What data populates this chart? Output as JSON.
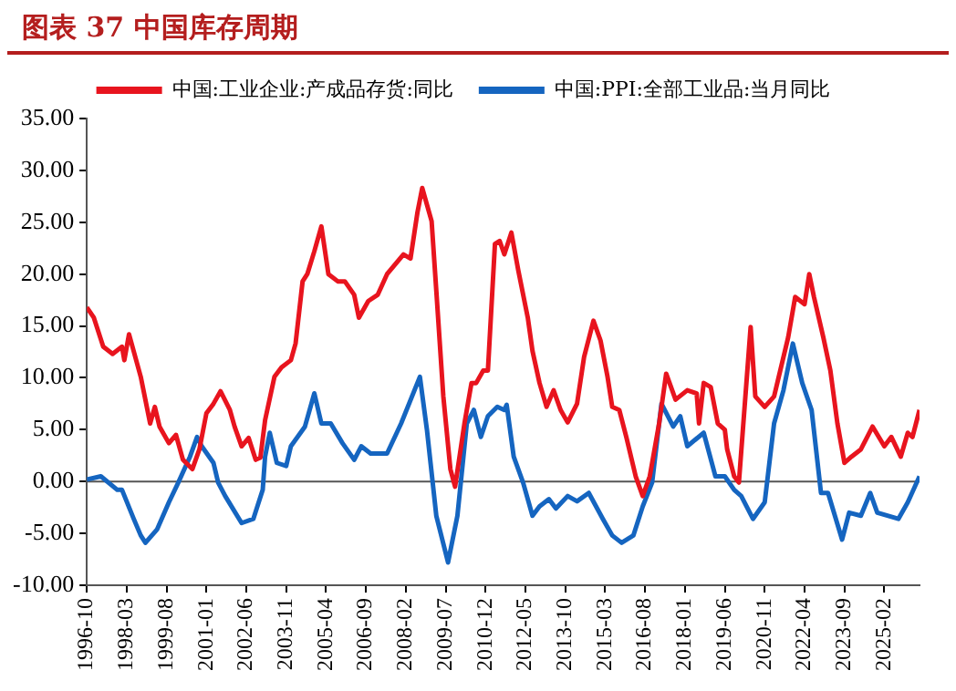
{
  "chart_data": {
    "type": "line",
    "title": "图表 37    中国库存周期",
    "xlim": [
      "1996-10",
      "2026-05"
    ],
    "xticks": [
      "1996-10",
      "1998-03",
      "1999-08",
      "2001-01",
      "2002-06",
      "2003-11",
      "2005-04",
      "2006-09",
      "2008-02",
      "2009-07",
      "2010-12",
      "2012-05",
      "2013-10",
      "2015-03",
      "2016-08",
      "2018-01",
      "2019-06",
      "2020-11",
      "2022-04",
      "2023-09",
      "2025-02"
    ],
    "ylim": [
      -10,
      35
    ],
    "yticks": [
      {
        "value": -10,
        "label": "-10.00"
      },
      {
        "value": -5,
        "label": "-5.00"
      },
      {
        "value": 0,
        "label": "0.00"
      },
      {
        "value": 5,
        "label": "5.00"
      },
      {
        "value": 10,
        "label": "10.00"
      },
      {
        "value": 15,
        "label": "15.00"
      },
      {
        "value": 20,
        "label": "20.00"
      },
      {
        "value": 25,
        "label": "25.00"
      },
      {
        "value": 30,
        "label": "30.00"
      },
      {
        "value": 35,
        "label": "35.00"
      }
    ],
    "ref_lines": [
      {
        "axis": "y",
        "value": 0,
        "color": "#555555"
      }
    ],
    "grid": false,
    "legend": "top",
    "marker": "none",
    "line_style": "solid",
    "series": [
      {
        "name": "中国:工业企业:产成品存货:同比",
        "color": "#e8141e",
        "x": [
          "1996-10",
          "1997-01",
          "1997-05",
          "1997-09",
          "1998-01",
          "1998-02",
          "1998-04",
          "1998-09",
          "1999-01",
          "1999-03",
          "1999-05",
          "1999-09",
          "1999-12",
          "2000-03",
          "2000-07",
          "2000-10",
          "2001-01",
          "2001-04",
          "2001-07",
          "2001-11",
          "2002-01",
          "2002-04",
          "2002-07",
          "2002-10",
          "2002-12",
          "2003-02",
          "2003-06",
          "2003-09",
          "2004-01",
          "2004-03",
          "2004-06",
          "2004-08",
          "2004-11",
          "2005-02",
          "2005-05",
          "2005-09",
          "2005-12",
          "2006-04",
          "2006-06",
          "2006-10",
          "2007-02",
          "2007-06",
          "2008-01",
          "2008-04",
          "2008-07",
          "2008-09",
          "2009-01",
          "2009-03",
          "2009-06",
          "2009-09",
          "2009-11",
          "2010-03",
          "2010-06",
          "2010-08",
          "2010-11",
          "2011-01",
          "2011-04",
          "2011-06",
          "2011-08",
          "2011-11",
          "2012-02",
          "2012-06",
          "2012-08",
          "2012-11",
          "2013-02",
          "2013-05",
          "2013-08",
          "2013-11",
          "2014-03",
          "2014-06",
          "2014-10",
          "2015-01",
          "2015-04",
          "2015-06",
          "2015-09",
          "2015-12",
          "2016-04",
          "2016-07",
          "2016-10",
          "2017-02",
          "2017-05",
          "2017-09",
          "2018-02",
          "2018-06",
          "2018-07",
          "2018-09",
          "2018-12",
          "2019-03",
          "2019-06",
          "2019-07",
          "2019-10",
          "2019-12",
          "2020-05",
          "2020-07",
          "2020-11",
          "2021-03",
          "2021-09",
          "2021-12",
          "2022-04",
          "2022-06",
          "2022-08",
          "2022-12",
          "2023-03",
          "2023-06",
          "2023-09",
          "2023-12",
          "2024-04",
          "2024-09",
          "2025-02",
          "2025-05",
          "2025-09",
          "2025-12",
          "2026-02",
          "2026-05"
        ],
        "values": [
          16.8,
          15.8,
          13,
          12.3,
          13,
          11.7,
          14.2,
          10.1,
          5.6,
          7.2,
          5.3,
          3.7,
          4.5,
          2.1,
          1.2,
          3.1,
          6.6,
          7.5,
          8.7,
          6.9,
          5.3,
          3.4,
          4.2,
          2.1,
          2.3,
          5.9,
          10.1,
          11,
          11.7,
          13.3,
          19.3,
          20,
          22.2,
          24.6,
          20,
          19.3,
          19.3,
          18,
          15.8,
          17.4,
          18,
          20,
          21.9,
          21.5,
          26,
          28.3,
          25.1,
          18.4,
          8.2,
          1.2,
          -0.5,
          5.6,
          9.5,
          9.5,
          10.7,
          10.7,
          22.9,
          23.2,
          21.9,
          24,
          20.3,
          15.8,
          12.6,
          9.5,
          7.2,
          8.8,
          6.9,
          5.7,
          7.5,
          12,
          15.5,
          13.6,
          10.1,
          7.2,
          6.9,
          4.3,
          0.5,
          -1.4,
          0.5,
          5.6,
          10.4,
          7.9,
          8.8,
          8.5,
          5.6,
          9.5,
          9.1,
          5.6,
          5,
          3.1,
          0.5,
          -0.1,
          14.9,
          8.2,
          7.2,
          8.2,
          13.9,
          17.8,
          17.1,
          20,
          17.8,
          13.9,
          10.7,
          5.6,
          1.8,
          2.4,
          3.1,
          5.3,
          3.4,
          4.3,
          2.4,
          4.7,
          4.3,
          6.9
        ]
      },
      {
        "name": "中国:PPI:全部工业品:当月同比",
        "color": "#1565c0",
        "x": [
          "1996-10",
          "1997-04",
          "1997-11",
          "1998-01",
          "1998-06",
          "1998-09",
          "1998-11",
          "1999-04",
          "1999-09",
          "2000-01",
          "2000-06",
          "2000-09",
          "2000-11",
          "2001-04",
          "2001-06",
          "2001-09",
          "2002-04",
          "2002-09",
          "2003-01",
          "2003-02",
          "2003-04",
          "2003-07",
          "2003-11",
          "2004-01",
          "2004-07",
          "2004-11",
          "2005-02",
          "2005-06",
          "2005-11",
          "2006-04",
          "2006-07",
          "2006-11",
          "2007-06",
          "2007-12",
          "2008-08",
          "2008-11",
          "2009-03",
          "2009-08",
          "2009-12",
          "2010-04",
          "2010-07",
          "2010-10",
          "2011-01",
          "2011-05",
          "2011-08",
          "2011-09",
          "2011-12",
          "2012-04",
          "2012-08",
          "2012-11",
          "2013-03",
          "2013-06",
          "2013-11",
          "2014-03",
          "2014-08",
          "2015-02",
          "2015-06",
          "2015-10",
          "2016-03",
          "2016-07",
          "2016-11",
          "2017-03",
          "2017-08",
          "2017-11",
          "2018-02",
          "2018-09",
          "2019-02",
          "2019-06",
          "2019-10",
          "2020-01",
          "2020-06",
          "2020-11",
          "2021-03",
          "2021-07",
          "2021-11",
          "2022-03",
          "2022-07",
          "2022-11",
          "2023-02",
          "2023-08",
          "2023-11",
          "2024-04",
          "2024-08",
          "2024-11",
          "2025-08",
          "2025-12",
          "2026-05"
        ],
        "values": [
          0.2,
          0.5,
          -0.8,
          -0.8,
          -3.6,
          -5.2,
          -5.9,
          -4.6,
          -2,
          -0.1,
          2.4,
          4.3,
          3.4,
          1.8,
          -0.1,
          -1.4,
          -4,
          -3.6,
          -0.8,
          2.4,
          4.7,
          1.8,
          1.5,
          3.4,
          5.3,
          8.5,
          5.6,
          5.6,
          3.7,
          2.1,
          3.4,
          2.7,
          2.7,
          5.6,
          10.1,
          5,
          -3.3,
          -7.8,
          -3.3,
          5.6,
          6.9,
          4.3,
          6.3,
          7.2,
          6.9,
          7.4,
          2.4,
          -0.1,
          -3.3,
          -2.4,
          -1.7,
          -2.6,
          -1.4,
          -1.9,
          -1.1,
          -3.6,
          -5.2,
          -5.9,
          -5.2,
          -2.4,
          -0.1,
          7.5,
          5.3,
          6.3,
          3.4,
          4.7,
          0.5,
          0.5,
          -0.8,
          -1.4,
          -3.6,
          -2,
          5.6,
          8.8,
          13.3,
          9.5,
          6.9,
          -1.1,
          -1.1,
          -5.6,
          -3,
          -3.3,
          -1.1,
          -3,
          -3.6,
          -2,
          0.5
        ]
      }
    ]
  }
}
